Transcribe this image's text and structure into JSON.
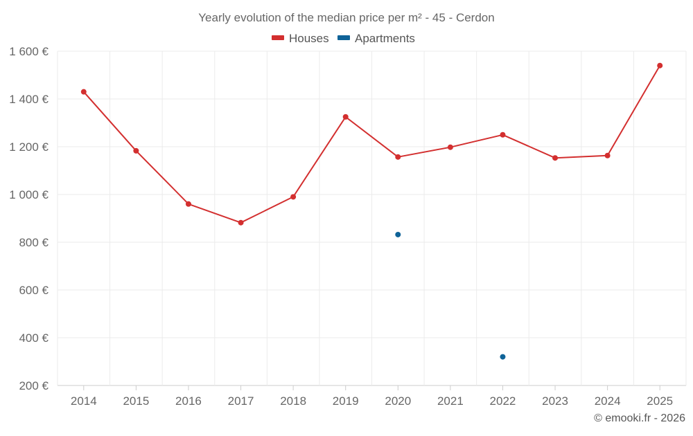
{
  "chart_data": {
    "type": "line",
    "title": "Yearly evolution of the median price per m² - 45 - Cerdon",
    "categories": [
      "2014",
      "2015",
      "2016",
      "2017",
      "2018",
      "2019",
      "2020",
      "2021",
      "2022",
      "2023",
      "2024",
      "2025"
    ],
    "y_ticks": [
      "200 €",
      "400 €",
      "600 €",
      "800 €",
      "1 000 €",
      "1 200 €",
      "1 400 €",
      "1 600 €"
    ],
    "ylim": [
      200,
      1600
    ],
    "grid": true,
    "legend_position": "top-center",
    "series": [
      {
        "name": "Houses",
        "color": "#d32f2f",
        "values": [
          1430,
          1183,
          960,
          882,
          990,
          1325,
          1157,
          1198,
          1250,
          1153,
          1163,
          1540
        ]
      },
      {
        "name": "Apartments",
        "color": "#0f6398",
        "values": [
          null,
          null,
          null,
          null,
          null,
          null,
          832,
          null,
          320,
          null,
          null,
          null
        ]
      }
    ],
    "credit": "© emooki.fr - 2026"
  }
}
